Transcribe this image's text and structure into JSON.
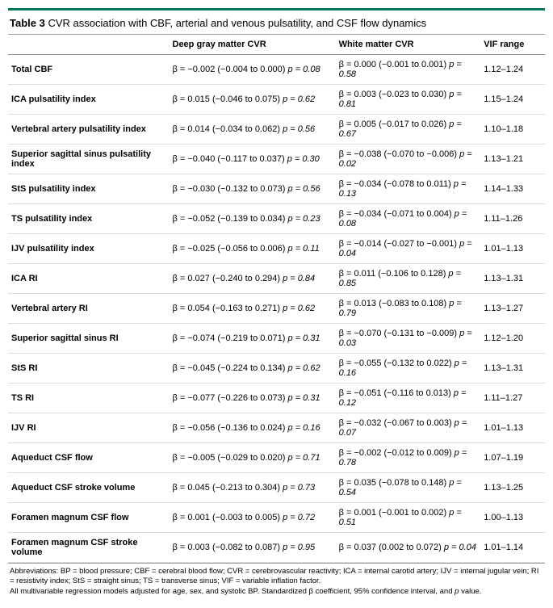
{
  "table": {
    "number": "Table 3",
    "caption": "CVR association with CBF, arterial and venous pulsatility, and CSF flow dynamics",
    "columns": [
      "",
      "Deep gray matter CVR",
      "White matter CVR",
      "VIF range"
    ],
    "rows": [
      {
        "label": "Total CBF",
        "dgm_b": "β = −0.002 (−0.004 to 0.000) ",
        "dgm_p": "p = 0.08",
        "wm_b": "β = 0.000 (−0.001 to 0.001) ",
        "wm_p": "p = 0.58",
        "vif": "1.12–1.24"
      },
      {
        "label": "ICA pulsatility index",
        "dgm_b": "β = 0.015 (−0.046 to 0.075) ",
        "dgm_p": "p = 0.62",
        "wm_b": "β = 0.003 (−0.023 to 0.030) ",
        "wm_p": "p = 0.81",
        "vif": "1.15–1.24"
      },
      {
        "label": "Vertebral artery pulsatility index",
        "dgm_b": "β = 0.014 (−0.034 to 0.062) ",
        "dgm_p": "p = 0.56",
        "wm_b": "β = 0.005 (−0.017 to 0.026) ",
        "wm_p": "p = 0.67",
        "vif": "1.10–1.18"
      },
      {
        "label": "Superior sagittal sinus pulsatility index",
        "dgm_b": "β = −0.040 (−0.117 to 0.037) ",
        "dgm_p": "p = 0.30",
        "wm_b": "β = −0.038 (−0.070 to −0.006) ",
        "wm_p": "p = 0.02",
        "vif": "1.13–1.21"
      },
      {
        "label": "StS pulsatility index",
        "dgm_b": "β = −0.030 (−0.132 to 0.073) ",
        "dgm_p": "p = 0.56",
        "wm_b": "β = −0.034 (−0.078 to 0.011) ",
        "wm_p": "p = 0.13",
        "vif": "1.14–1.33"
      },
      {
        "label": "TS pulsatility index",
        "dgm_b": "β = −0.052 (−0.139 to 0.034) ",
        "dgm_p": "p = 0.23",
        "wm_b": "β = −0.034 (−0.071 to 0.004) ",
        "wm_p": "p = 0.08",
        "vif": "1.11–1.26"
      },
      {
        "label": "IJV pulsatility index",
        "dgm_b": "β = −0.025 (−0.056 to 0.006) ",
        "dgm_p": "p = 0.11",
        "wm_b": "β = −0.014 (−0.027 to −0.001) ",
        "wm_p": "p = 0.04",
        "vif": "1.01–1.13"
      },
      {
        "label": "ICA RI",
        "dgm_b": "β = 0.027 (−0.240 to 0.294) ",
        "dgm_p": "p = 0.84",
        "wm_b": "β = 0.011 (−0.106 to 0.128) ",
        "wm_p": "p = 0.85",
        "vif": "1.13–1.31"
      },
      {
        "label": "Vertebral artery RI",
        "dgm_b": "β = 0.054 (−0.163 to 0.271) ",
        "dgm_p": "p = 0.62",
        "wm_b": "β = 0.013 (−0.083 to 0.108) ",
        "wm_p": "p = 0.79",
        "vif": "1.13–1.27"
      },
      {
        "label": "Superior sagittal sinus RI",
        "dgm_b": "β = −0.074 (−0.219 to 0.071) ",
        "dgm_p": "p = 0.31",
        "wm_b": "β = −0.070 (−0.131 to −0.009) ",
        "wm_p": "p = 0.03",
        "vif": "1.12–1.20"
      },
      {
        "label": "StS RI",
        "dgm_b": "β = −0.045 (−0.224 to 0.134) ",
        "dgm_p": "p = 0.62",
        "wm_b": "β = −0.055 (−0.132 to 0.022) ",
        "wm_p": "p = 0.16",
        "vif": "1.13–1.31"
      },
      {
        "label": "TS RI",
        "dgm_b": "β = −0.077 (−0.226 to 0.073) ",
        "dgm_p": "p = 0.31",
        "wm_b": "β = −0.051 (−0.116 to 0.013) ",
        "wm_p": "p = 0.12",
        "vif": "1.11–1.27"
      },
      {
        "label": "IJV RI",
        "dgm_b": "β = −0.056 (−0.136 to 0.024) ",
        "dgm_p": "p = 0.16",
        "wm_b": "β = −0.032 (−0.067 to 0.003) ",
        "wm_p": "p = 0.07",
        "vif": "1.01–1.13"
      },
      {
        "label": "Aqueduct CSF flow",
        "dgm_b": "β = −0.005 (−0.029 to 0.020) ",
        "dgm_p": "p = 0.71",
        "wm_b": "β = −0.002 (−0.012 to 0.009) ",
        "wm_p": "p = 0.78",
        "vif": "1.07–1.19"
      },
      {
        "label": "Aqueduct CSF stroke volume",
        "dgm_b": "β = 0.045 (−0.213 to 0.304) ",
        "dgm_p": "p = 0.73",
        "wm_b": "β = 0.035 (−0.078 to 0.148) ",
        "wm_p": "p = 0.54",
        "vif": "1.13–1.25"
      },
      {
        "label": "Foramen magnum CSF flow",
        "dgm_b": "β = 0.001 (−0.003 to 0.005) ",
        "dgm_p": "p = 0.72",
        "wm_b": "β = 0.001 (−0.001 to 0.002) ",
        "wm_p": "p = 0.51",
        "vif": "1.00–1.13"
      },
      {
        "label": "Foramen magnum CSF stroke volume",
        "dgm_b": "β = 0.003 (−0.082 to 0.087) ",
        "dgm_p": "p = 0.95",
        "wm_b": "β = 0.037 (0.002 to 0.072) ",
        "wm_p": "p = 0.04",
        "vif": "1.01–1.14"
      }
    ],
    "footnote1": "Abbreviations: BP = blood pressure; CBF = cerebral blood flow; CVR = cerebrovascular reactivity; ICA = internal carotid artery; IJV = internal jugular vein; RI = resistivity index; StS = straight sinus; TS = transverse sinus; VIF = variable inflation factor.",
    "footnote2_a": "All multivariable regression models adjusted for age, sex, and systolic BP. Standardized β coefficient, 95% confidence interval, and ",
    "footnote2_b": "p",
    "footnote2_c": " value."
  },
  "style": {
    "accent_color": "#007a5e",
    "border_color": "#999",
    "row_border": "#ddd",
    "font_family": "Arial, Helvetica, sans-serif",
    "base_fontsize": 11,
    "footnote_fontsize": 9.5
  }
}
